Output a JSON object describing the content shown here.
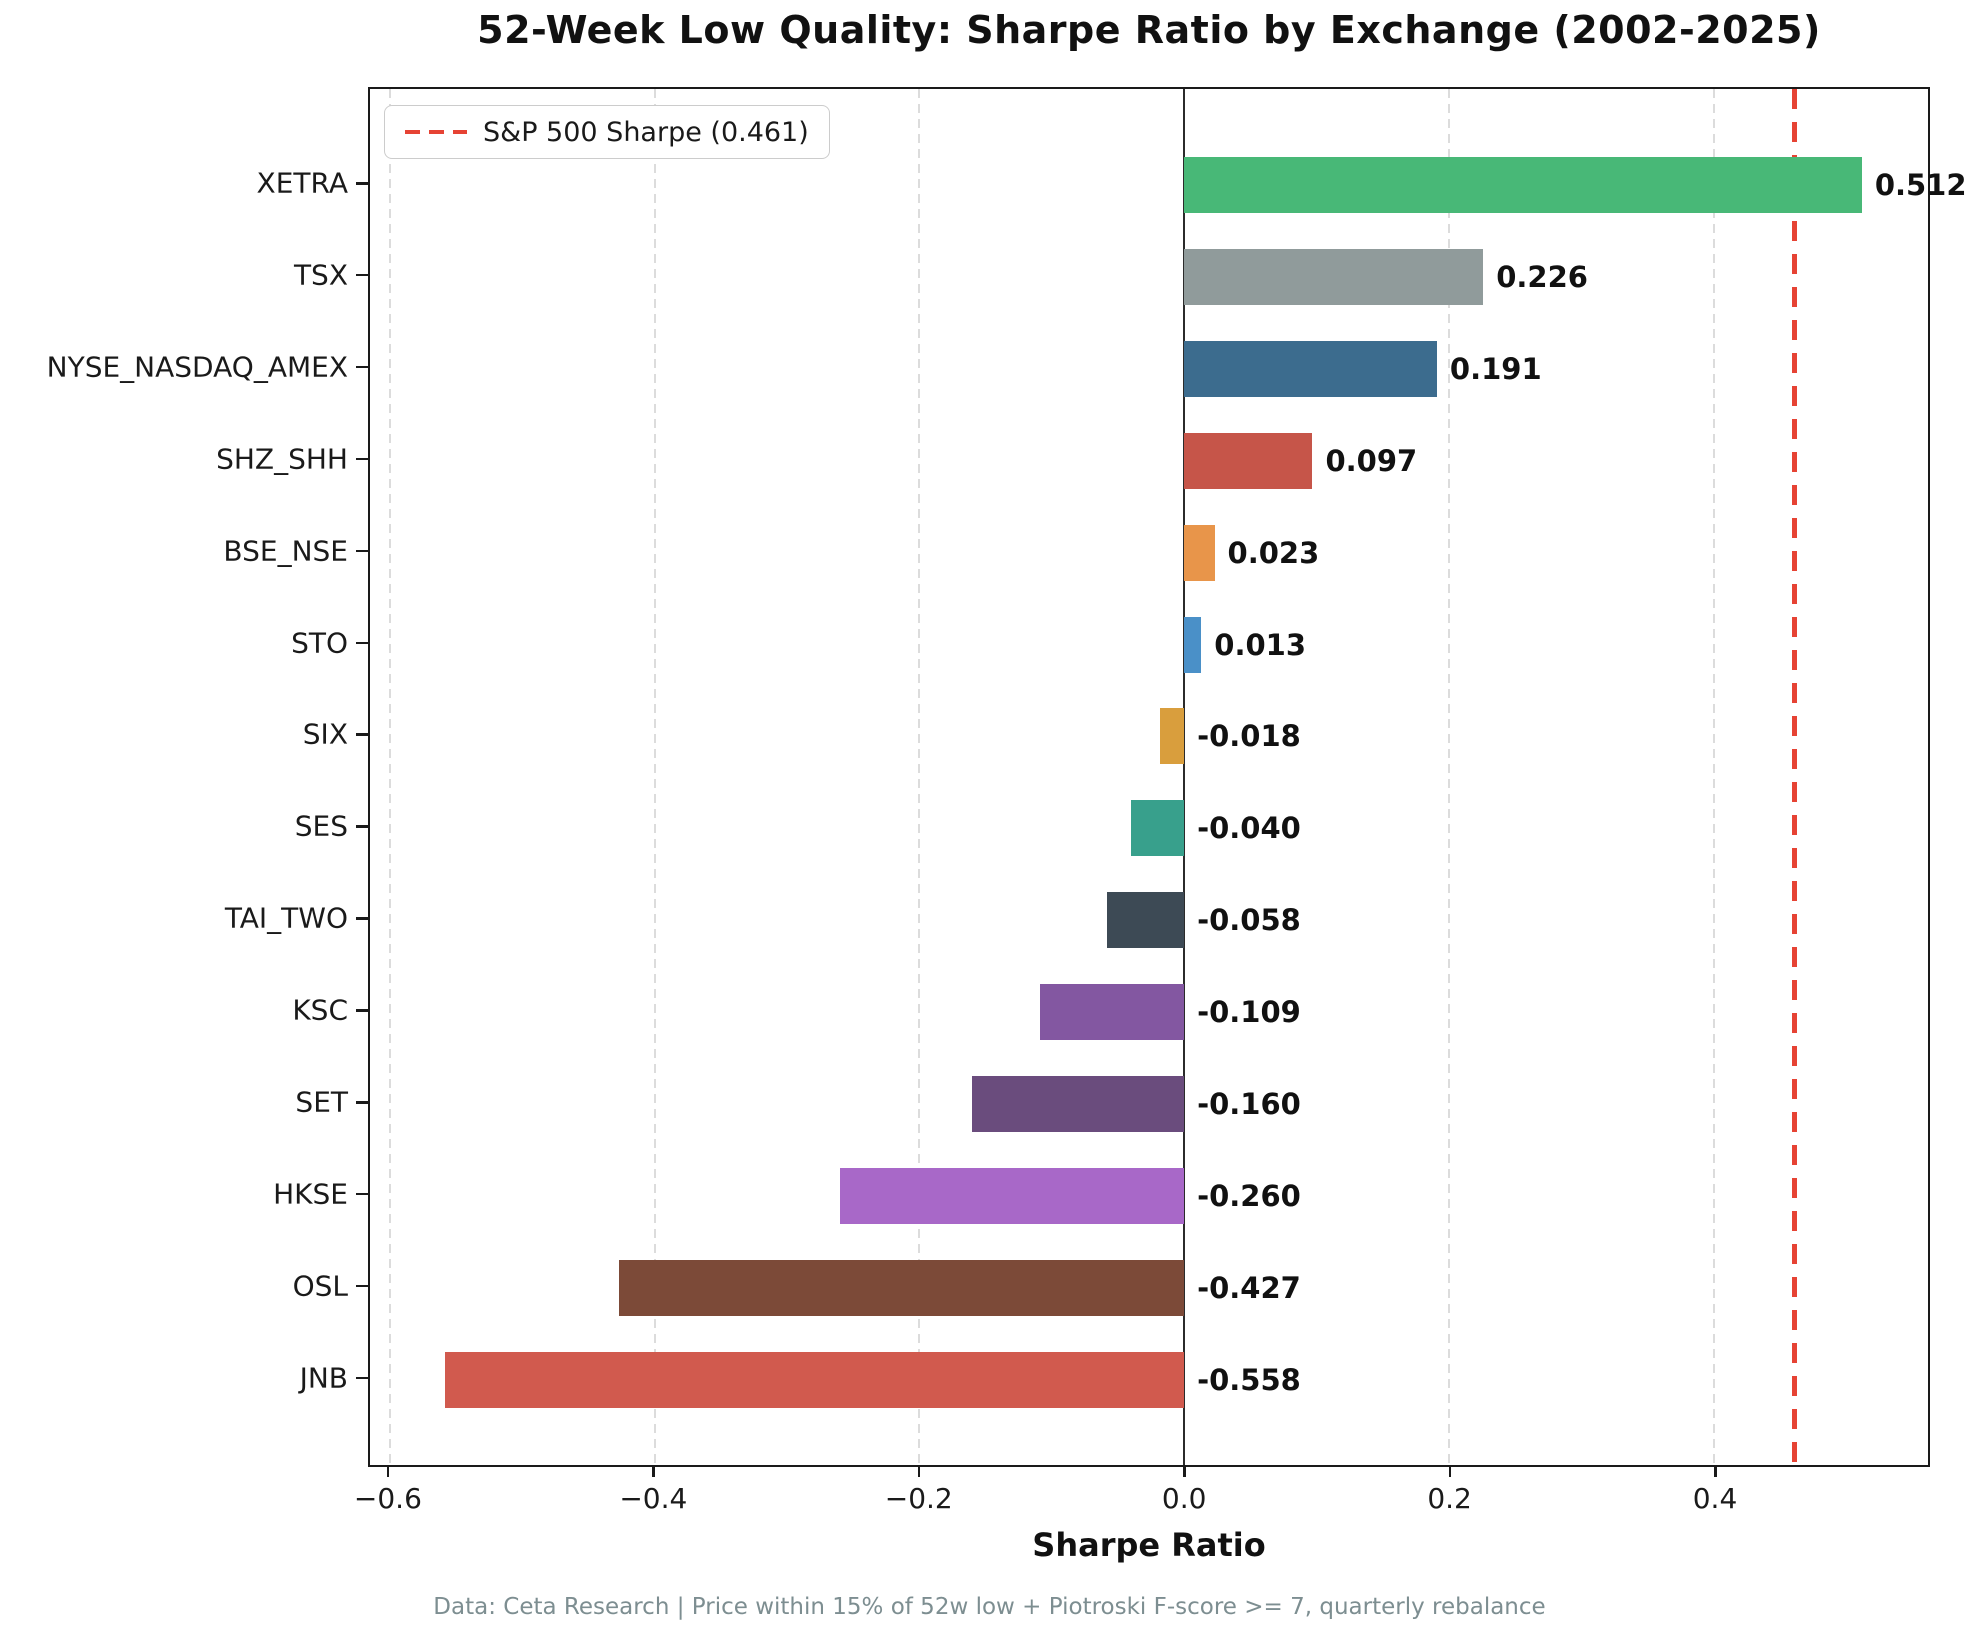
{
  "title": "52-Week Low Quality: Sharpe Ratio by Exchange (2002-2025)",
  "footer": {
    "text": "Data: Ceta Research | Price within 15% of 52w low + Piotroski F-score >= 7, quarterly rebalance"
  },
  "legend": {
    "label": "S&P 500 Sharpe (0.461)"
  },
  "chart_data": {
    "type": "bar",
    "orientation": "horizontal",
    "title": "52-Week Low Quality: Sharpe Ratio by Exchange (2002-2025)",
    "xlabel": "Sharpe Ratio",
    "ylabel": "",
    "categories": [
      "XETRA",
      "TSX",
      "NYSE_NASDAQ_AMEX",
      "SHZ_SHH",
      "BSE_NSE",
      "STO",
      "SIX",
      "SES",
      "TAI_TWO",
      "KSC",
      "SET",
      "HKSE",
      "OSL",
      "JNB"
    ],
    "values": [
      0.512,
      0.226,
      0.191,
      0.097,
      0.023,
      0.013,
      -0.018,
      -0.04,
      -0.058,
      -0.109,
      -0.16,
      -0.26,
      -0.427,
      -0.558
    ],
    "colors": [
      "#48b877",
      "#909b9b",
      "#3c6c8e",
      "#c65549",
      "#e8954a",
      "#4a90c8",
      "#d99e3d",
      "#38a08c",
      "#3d4a55",
      "#8357a1",
      "#6a4c7d",
      "#a868c8",
      "#7c4a38",
      "#d15a4e"
    ],
    "xlim": [
      -0.615,
      0.562
    ],
    "xticks": [
      -0.6,
      -0.4,
      -0.2,
      0.0,
      0.2,
      0.4
    ],
    "xtick_labels": [
      "−0.6",
      "−0.4",
      "−0.2",
      "0.0",
      "0.2",
      "0.4"
    ],
    "grid": "vertical-dashed",
    "reference_line": {
      "value": 0.461,
      "label": "S&P 500 Sharpe (0.461)",
      "color": "#e64334",
      "style": "dashed"
    },
    "zero_line_color": "#2b2b2b",
    "gridline_color": "#dcdcdc",
    "legend_position": "upper-left"
  }
}
